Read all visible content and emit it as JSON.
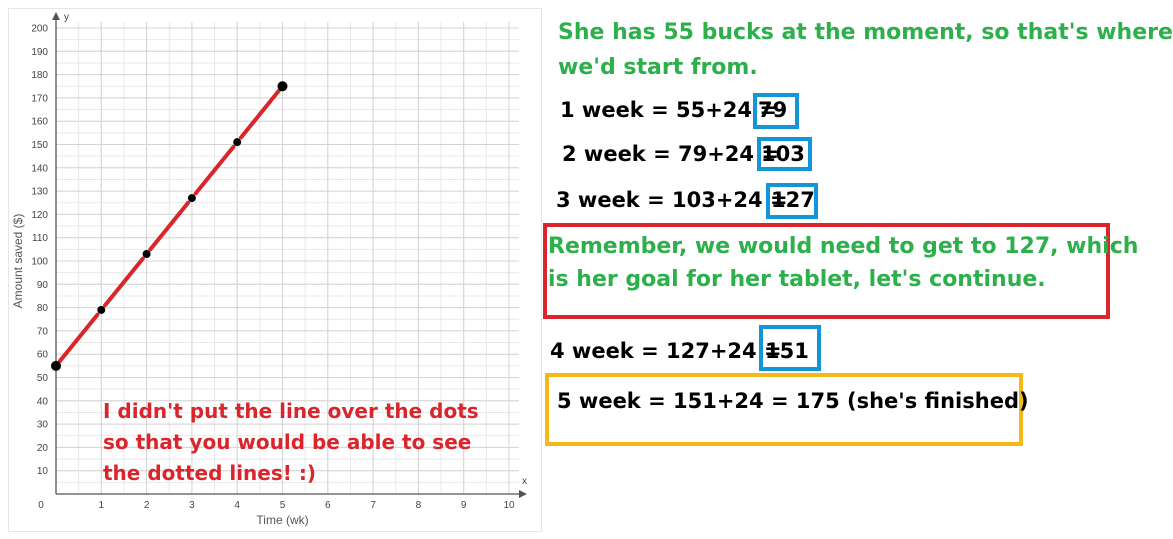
{
  "chart_data": {
    "type": "line",
    "xlabel": "Time (wk)",
    "ylabel": "Amount saved ($)",
    "x_axis_letter": "x",
    "y_axis_letter": "y",
    "xlim": [
      0,
      10
    ],
    "ylim": [
      0,
      200
    ],
    "x_ticks": [
      0,
      1,
      2,
      3,
      4,
      5,
      6,
      7,
      8,
      9,
      10
    ],
    "y_ticks": [
      10,
      20,
      30,
      40,
      50,
      60,
      70,
      80,
      90,
      100,
      110,
      120,
      130,
      140,
      150,
      160,
      170,
      180,
      190,
      200
    ],
    "grid": true,
    "minor_grid": true,
    "series": [
      {
        "x": [
          0,
          1,
          2,
          3,
          4,
          5
        ],
        "values": [
          55,
          79,
          103,
          127,
          151,
          175
        ],
        "color": "#d9252b",
        "marker_color": "#000000",
        "line_style": "dashed-between-points"
      }
    ],
    "annotations": [
      "I didn't put the line over the dots",
      "so that you would be able to see",
      "the dotted lines! :)"
    ]
  },
  "explanation": {
    "intro_line1": "She has 55 bucks at the moment, so that's where",
    "intro_line2": "we'd start from.",
    "week1_text": "1 week = 55+24 = ",
    "week1_result": "79",
    "week2_text": "2 week = 79+24 = ",
    "week2_result": "103",
    "week3_text": "3 week = 103+24 = ",
    "week3_result": "127",
    "reminder_line1": "Remember, we would need to get to 127, which",
    "reminder_line2": "is her goal for her tablet, let's continue.",
    "week4_text": "4 week = 127+24 = ",
    "week4_result": "151",
    "week5_text": "5 week = 151+24 = 175 (she's finished)"
  },
  "colors": {
    "green": "#2db04b",
    "red": "#d9252b",
    "blue": "#1296d6",
    "yellow": "#f4b81b"
  }
}
